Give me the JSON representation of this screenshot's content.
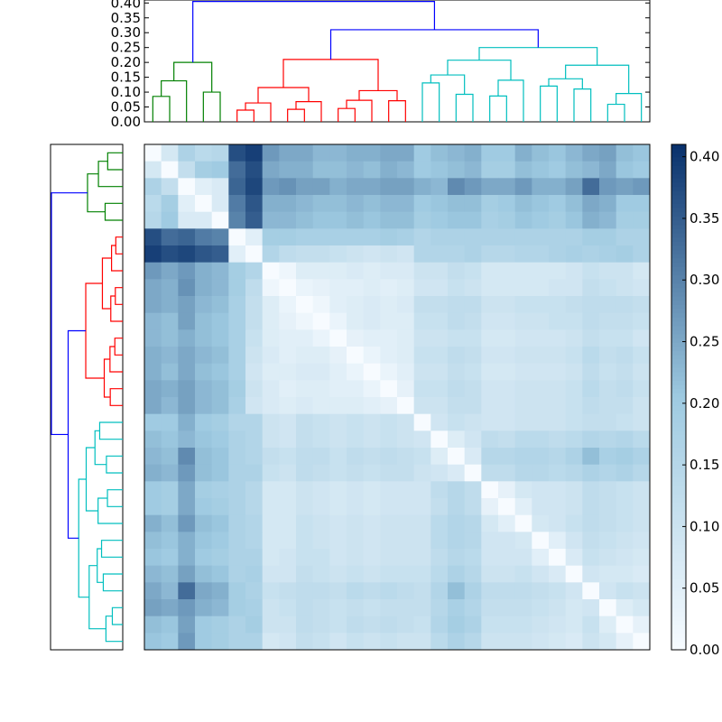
{
  "chart_data": {
    "type": "heatmap",
    "title": "",
    "xlabel": "",
    "ylabel": "",
    "n_leaves": 30,
    "value_range": [
      0,
      0.41
    ],
    "palette": {
      "low": "#f7fbff",
      "mid": "#9ecae1",
      "high": "#08306b"
    },
    "link_colors": {
      "root": "#0000ff",
      "cluster_green": "#008000",
      "cluster_red": "#ff0000",
      "cluster_cyan": "#00bfbf"
    },
    "dendrogram": {
      "ylim": [
        0,
        0.41
      ],
      "ticks": [
        "0.00",
        "0.05",
        "0.10",
        "0.15",
        "0.20",
        "0.25",
        "0.30",
        "0.35",
        "0.40"
      ],
      "clusters": [
        {
          "name": "green",
          "leaves": [
            0,
            4
          ],
          "height": 0.2
        },
        {
          "name": "red",
          "leaves": [
            5,
            15
          ],
          "height": 0.21
        },
        {
          "name": "cyan",
          "leaves": [
            16,
            29
          ],
          "height": 0.25
        }
      ],
      "root_merges": [
        {
          "height": 0.31,
          "between": [
            "red",
            "cyan"
          ]
        },
        {
          "height": 0.405,
          "between": [
            "green",
            "red+cyan"
          ]
        }
      ]
    },
    "colorbar": {
      "ticks": [
        "0.00",
        "0.05",
        "0.10",
        "0.15",
        "0.20",
        "0.25",
        "0.30",
        "0.35",
        "0.40"
      ],
      "range": [
        0,
        0.41
      ]
    },
    "matrix": [
      [
        0.0,
        0.08,
        0.17,
        0.14,
        0.15,
        0.37,
        0.39,
        0.27,
        0.25,
        0.25,
        0.23,
        0.23,
        0.24,
        0.24,
        0.25,
        0.25,
        0.2,
        0.22,
        0.23,
        0.24,
        0.2,
        0.2,
        0.24,
        0.22,
        0.21,
        0.23,
        0.25,
        0.26,
        0.22,
        0.21
      ],
      [
        0.08,
        0.0,
        0.12,
        0.19,
        0.2,
        0.33,
        0.37,
        0.25,
        0.24,
        0.24,
        0.22,
        0.22,
        0.23,
        0.22,
        0.24,
        0.23,
        0.2,
        0.21,
        0.22,
        0.23,
        0.19,
        0.19,
        0.22,
        0.21,
        0.2,
        0.22,
        0.23,
        0.25,
        0.21,
        0.2
      ],
      [
        0.17,
        0.12,
        0.0,
        0.05,
        0.07,
        0.34,
        0.38,
        0.27,
        0.28,
        0.26,
        0.26,
        0.24,
        0.25,
        0.25,
        0.26,
        0.26,
        0.24,
        0.23,
        0.29,
        0.27,
        0.25,
        0.25,
        0.27,
        0.24,
        0.24,
        0.26,
        0.33,
        0.27,
        0.26,
        0.27
      ],
      [
        0.14,
        0.19,
        0.05,
        0.0,
        0.07,
        0.31,
        0.36,
        0.24,
        0.24,
        0.23,
        0.22,
        0.22,
        0.23,
        0.22,
        0.23,
        0.23,
        0.2,
        0.21,
        0.22,
        0.22,
        0.19,
        0.2,
        0.22,
        0.21,
        0.2,
        0.22,
        0.25,
        0.24,
        0.2,
        0.2
      ],
      [
        0.15,
        0.2,
        0.07,
        0.07,
        0.0,
        0.3,
        0.35,
        0.23,
        0.23,
        0.22,
        0.21,
        0.21,
        0.22,
        0.21,
        0.22,
        0.22,
        0.19,
        0.2,
        0.21,
        0.21,
        0.18,
        0.19,
        0.21,
        0.2,
        0.19,
        0.21,
        0.24,
        0.23,
        0.19,
        0.19
      ],
      [
        0.37,
        0.33,
        0.34,
        0.31,
        0.3,
        0.0,
        0.05,
        0.19,
        0.19,
        0.18,
        0.18,
        0.18,
        0.18,
        0.18,
        0.19,
        0.18,
        0.16,
        0.17,
        0.17,
        0.17,
        0.17,
        0.17,
        0.17,
        0.17,
        0.17,
        0.17,
        0.19,
        0.19,
        0.17,
        0.17
      ],
      [
        0.39,
        0.37,
        0.38,
        0.36,
        0.35,
        0.05,
        0.0,
        0.16,
        0.13,
        0.12,
        0.12,
        0.11,
        0.1,
        0.09,
        0.1,
        0.09,
        0.16,
        0.16,
        0.16,
        0.17,
        0.15,
        0.15,
        0.16,
        0.16,
        0.17,
        0.18,
        0.17,
        0.18,
        0.19,
        0.17
      ],
      [
        0.27,
        0.25,
        0.27,
        0.24,
        0.23,
        0.19,
        0.16,
        0.0,
        0.02,
        0.06,
        0.06,
        0.06,
        0.07,
        0.06,
        0.07,
        0.07,
        0.1,
        0.1,
        0.12,
        0.11,
        0.08,
        0.08,
        0.08,
        0.08,
        0.08,
        0.09,
        0.11,
        0.1,
        0.1,
        0.08
      ],
      [
        0.25,
        0.24,
        0.28,
        0.24,
        0.23,
        0.19,
        0.13,
        0.02,
        0.0,
        0.03,
        0.04,
        0.05,
        0.05,
        0.06,
        0.05,
        0.06,
        0.09,
        0.09,
        0.11,
        0.1,
        0.08,
        0.08,
        0.08,
        0.08,
        0.09,
        0.09,
        0.12,
        0.11,
        0.1,
        0.09
      ],
      [
        0.25,
        0.24,
        0.26,
        0.23,
        0.22,
        0.18,
        0.12,
        0.06,
        0.03,
        0.0,
        0.02,
        0.05,
        0.06,
        0.07,
        0.06,
        0.07,
        0.12,
        0.12,
        0.13,
        0.13,
        0.1,
        0.1,
        0.11,
        0.11,
        0.11,
        0.12,
        0.13,
        0.13,
        0.13,
        0.12
      ],
      [
        0.23,
        0.22,
        0.26,
        0.22,
        0.21,
        0.18,
        0.12,
        0.06,
        0.04,
        0.02,
        0.0,
        0.03,
        0.06,
        0.07,
        0.06,
        0.06,
        0.11,
        0.11,
        0.13,
        0.12,
        0.09,
        0.09,
        0.1,
        0.1,
        0.11,
        0.11,
        0.13,
        0.12,
        0.12,
        0.11
      ],
      [
        0.23,
        0.22,
        0.24,
        0.22,
        0.21,
        0.18,
        0.11,
        0.06,
        0.05,
        0.05,
        0.03,
        0.0,
        0.04,
        0.05,
        0.05,
        0.06,
        0.1,
        0.1,
        0.11,
        0.11,
        0.08,
        0.08,
        0.09,
        0.09,
        0.09,
        0.1,
        0.12,
        0.11,
        0.11,
        0.09
      ],
      [
        0.24,
        0.23,
        0.25,
        0.23,
        0.22,
        0.18,
        0.1,
        0.07,
        0.05,
        0.06,
        0.06,
        0.04,
        0.0,
        0.03,
        0.05,
        0.06,
        0.11,
        0.11,
        0.13,
        0.12,
        0.09,
        0.09,
        0.1,
        0.1,
        0.1,
        0.11,
        0.14,
        0.12,
        0.13,
        0.11
      ],
      [
        0.24,
        0.22,
        0.25,
        0.22,
        0.21,
        0.18,
        0.09,
        0.06,
        0.06,
        0.07,
        0.07,
        0.05,
        0.03,
        0.0,
        0.03,
        0.05,
        0.1,
        0.1,
        0.12,
        0.11,
        0.08,
        0.08,
        0.09,
        0.09,
        0.09,
        0.1,
        0.13,
        0.11,
        0.12,
        0.1
      ],
      [
        0.25,
        0.24,
        0.26,
        0.23,
        0.22,
        0.19,
        0.1,
        0.07,
        0.05,
        0.06,
        0.06,
        0.05,
        0.05,
        0.03,
        0.0,
        0.04,
        0.11,
        0.11,
        0.13,
        0.12,
        0.09,
        0.09,
        0.1,
        0.1,
        0.1,
        0.11,
        0.14,
        0.12,
        0.13,
        0.11
      ],
      [
        0.25,
        0.23,
        0.26,
        0.23,
        0.22,
        0.18,
        0.09,
        0.07,
        0.06,
        0.07,
        0.06,
        0.06,
        0.06,
        0.05,
        0.04,
        0.0,
        0.1,
        0.1,
        0.12,
        0.12,
        0.09,
        0.09,
        0.1,
        0.1,
        0.1,
        0.11,
        0.13,
        0.12,
        0.12,
        0.1
      ],
      [
        0.2,
        0.2,
        0.24,
        0.2,
        0.19,
        0.16,
        0.16,
        0.1,
        0.09,
        0.12,
        0.11,
        0.1,
        0.11,
        0.1,
        0.11,
        0.1,
        0.0,
        0.09,
        0.11,
        0.1,
        0.09,
        0.09,
        0.1,
        0.1,
        0.1,
        0.11,
        0.12,
        0.12,
        0.11,
        0.1
      ],
      [
        0.22,
        0.21,
        0.23,
        0.21,
        0.2,
        0.17,
        0.16,
        0.1,
        0.09,
        0.12,
        0.11,
        0.1,
        0.11,
        0.1,
        0.11,
        0.1,
        0.09,
        0.0,
        0.06,
        0.09,
        0.13,
        0.12,
        0.14,
        0.14,
        0.13,
        0.14,
        0.16,
        0.15,
        0.16,
        0.14
      ],
      [
        0.23,
        0.22,
        0.29,
        0.22,
        0.21,
        0.17,
        0.16,
        0.12,
        0.11,
        0.13,
        0.13,
        0.11,
        0.13,
        0.12,
        0.13,
        0.12,
        0.11,
        0.06,
        0.0,
        0.07,
        0.15,
        0.15,
        0.16,
        0.16,
        0.15,
        0.17,
        0.22,
        0.18,
        0.19,
        0.17
      ],
      [
        0.24,
        0.23,
        0.27,
        0.22,
        0.21,
        0.17,
        0.17,
        0.11,
        0.1,
        0.13,
        0.12,
        0.11,
        0.12,
        0.11,
        0.12,
        0.12,
        0.1,
        0.09,
        0.07,
        0.0,
        0.13,
        0.13,
        0.15,
        0.15,
        0.14,
        0.15,
        0.17,
        0.16,
        0.17,
        0.15
      ],
      [
        0.2,
        0.19,
        0.25,
        0.19,
        0.18,
        0.17,
        0.15,
        0.08,
        0.08,
        0.1,
        0.09,
        0.08,
        0.09,
        0.08,
        0.09,
        0.09,
        0.09,
        0.13,
        0.15,
        0.13,
        0.0,
        0.04,
        0.08,
        0.09,
        0.09,
        0.1,
        0.13,
        0.12,
        0.11,
        0.1
      ],
      [
        0.2,
        0.19,
        0.25,
        0.2,
        0.19,
        0.17,
        0.15,
        0.08,
        0.08,
        0.1,
        0.09,
        0.08,
        0.09,
        0.08,
        0.09,
        0.09,
        0.09,
        0.12,
        0.15,
        0.13,
        0.04,
        0.0,
        0.05,
        0.09,
        0.09,
        0.1,
        0.13,
        0.12,
        0.11,
        0.1
      ],
      [
        0.24,
        0.22,
        0.27,
        0.22,
        0.21,
        0.17,
        0.16,
        0.08,
        0.08,
        0.11,
        0.1,
        0.09,
        0.1,
        0.09,
        0.1,
        0.1,
        0.1,
        0.14,
        0.16,
        0.15,
        0.08,
        0.05,
        0.0,
        0.08,
        0.09,
        0.11,
        0.13,
        0.12,
        0.11,
        0.1
      ],
      [
        0.22,
        0.21,
        0.24,
        0.21,
        0.2,
        0.17,
        0.16,
        0.08,
        0.08,
        0.11,
        0.1,
        0.09,
        0.1,
        0.09,
        0.1,
        0.1,
        0.1,
        0.14,
        0.16,
        0.15,
        0.09,
        0.09,
        0.08,
        0.0,
        0.05,
        0.09,
        0.12,
        0.11,
        0.1,
        0.09
      ],
      [
        0.21,
        0.2,
        0.24,
        0.2,
        0.19,
        0.17,
        0.17,
        0.08,
        0.09,
        0.11,
        0.11,
        0.09,
        0.1,
        0.09,
        0.1,
        0.1,
        0.1,
        0.13,
        0.15,
        0.14,
        0.09,
        0.09,
        0.09,
        0.05,
        0.0,
        0.07,
        0.11,
        0.1,
        0.09,
        0.08
      ],
      [
        0.23,
        0.22,
        0.26,
        0.22,
        0.21,
        0.17,
        0.18,
        0.09,
        0.09,
        0.12,
        0.11,
        0.1,
        0.11,
        0.1,
        0.11,
        0.11,
        0.11,
        0.14,
        0.17,
        0.15,
        0.1,
        0.1,
        0.11,
        0.09,
        0.07,
        0.0,
        0.09,
        0.08,
        0.08,
        0.07
      ],
      [
        0.25,
        0.23,
        0.33,
        0.25,
        0.24,
        0.19,
        0.17,
        0.11,
        0.12,
        0.13,
        0.13,
        0.12,
        0.14,
        0.13,
        0.14,
        0.13,
        0.12,
        0.16,
        0.22,
        0.17,
        0.13,
        0.13,
        0.13,
        0.12,
        0.11,
        0.09,
        0.0,
        0.09,
        0.11,
        0.1
      ],
      [
        0.26,
        0.25,
        0.27,
        0.24,
        0.23,
        0.19,
        0.18,
        0.1,
        0.11,
        0.13,
        0.12,
        0.11,
        0.12,
        0.11,
        0.12,
        0.12,
        0.12,
        0.15,
        0.18,
        0.16,
        0.12,
        0.12,
        0.12,
        0.11,
        0.1,
        0.08,
        0.09,
        0.0,
        0.06,
        0.08
      ],
      [
        0.22,
        0.21,
        0.26,
        0.2,
        0.19,
        0.17,
        0.19,
        0.1,
        0.1,
        0.13,
        0.12,
        0.11,
        0.13,
        0.12,
        0.13,
        0.12,
        0.11,
        0.16,
        0.19,
        0.17,
        0.11,
        0.11,
        0.11,
        0.1,
        0.09,
        0.08,
        0.11,
        0.06,
        0.0,
        0.04
      ],
      [
        0.21,
        0.2,
        0.27,
        0.2,
        0.19,
        0.17,
        0.17,
        0.08,
        0.09,
        0.12,
        0.11,
        0.09,
        0.11,
        0.1,
        0.11,
        0.1,
        0.1,
        0.14,
        0.17,
        0.15,
        0.1,
        0.1,
        0.1,
        0.09,
        0.08,
        0.07,
        0.1,
        0.08,
        0.04,
        0.0
      ]
    ]
  }
}
